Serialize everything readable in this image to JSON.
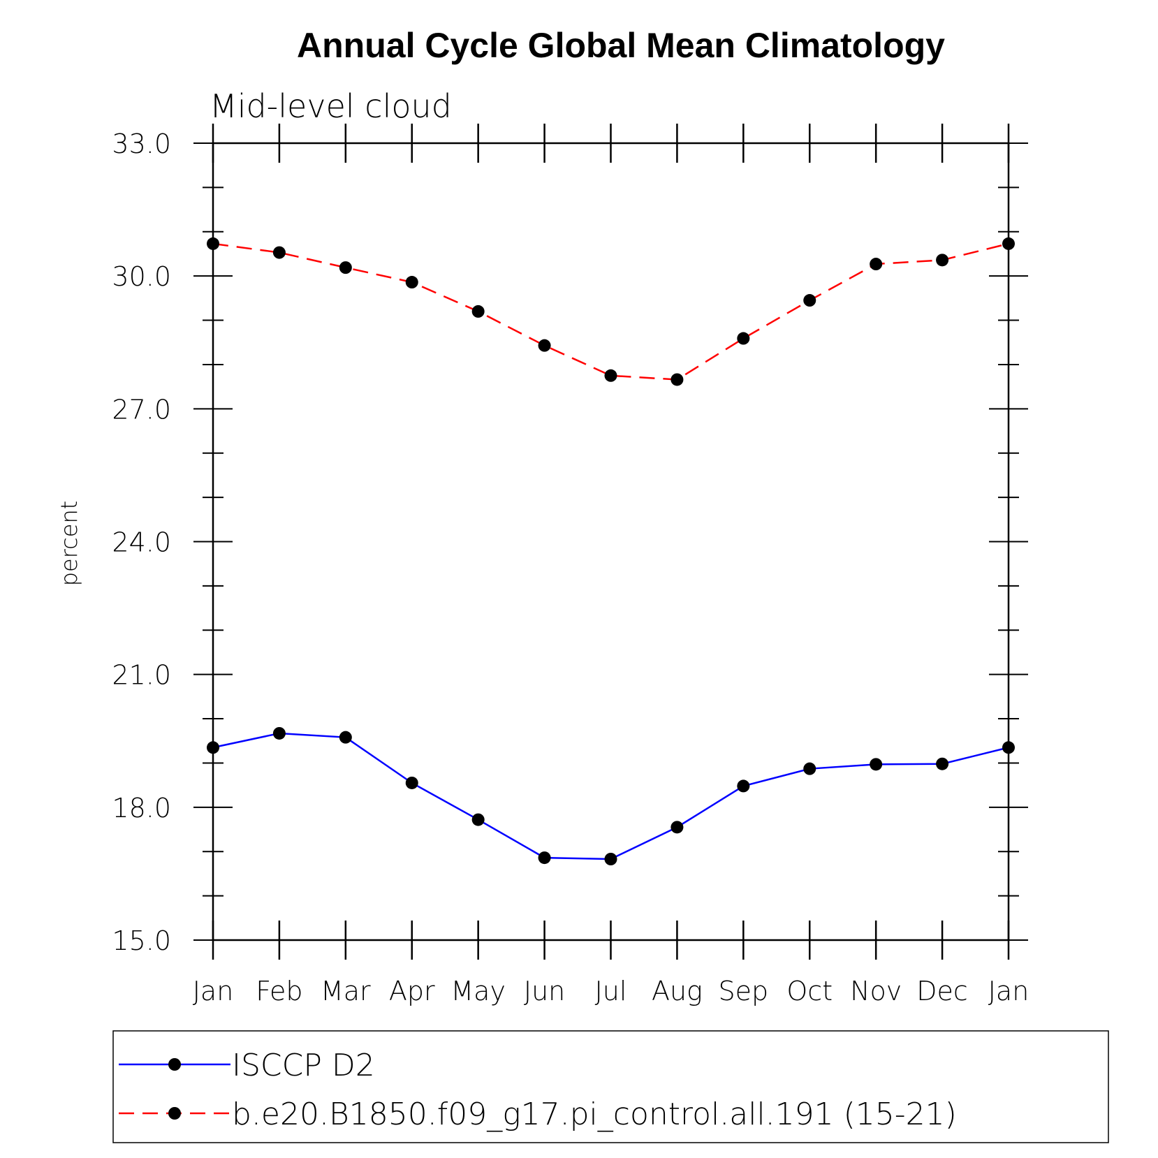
{
  "chart_data": {
    "type": "line",
    "title": "Annual Cycle Global Mean Climatology",
    "subtitle": "Mid-level cloud",
    "xlabel": "",
    "ylabel": "percent",
    "ylim": [
      15.0,
      33.0
    ],
    "yticks": [
      "15.0",
      "18.0",
      "21.0",
      "24.0",
      "27.0",
      "30.0",
      "33.0"
    ],
    "categories": [
      "Jan",
      "Feb",
      "Mar",
      "Apr",
      "May",
      "Jun",
      "Jul",
      "Aug",
      "Sep",
      "Oct",
      "Nov",
      "Dec",
      "Jan"
    ],
    "series": [
      {
        "name": "ISCCP D2",
        "color": "#0000ff",
        "dash": "solid",
        "marker": "filled-circle",
        "values": [
          19.35,
          19.67,
          19.58,
          18.55,
          17.72,
          16.86,
          16.83,
          17.55,
          18.48,
          18.87,
          18.97,
          18.98,
          19.35
        ]
      },
      {
        "name": "b.e20.B1850.f09_g17.pi_control.all.191 (15-21)",
        "color": "#ff0000",
        "dash": "dashed",
        "marker": "filled-circle",
        "values": [
          30.73,
          30.53,
          30.19,
          29.86,
          29.2,
          28.43,
          27.75,
          27.66,
          28.59,
          29.45,
          30.27,
          30.36,
          30.73
        ]
      }
    ],
    "legend_position": "bottom"
  }
}
